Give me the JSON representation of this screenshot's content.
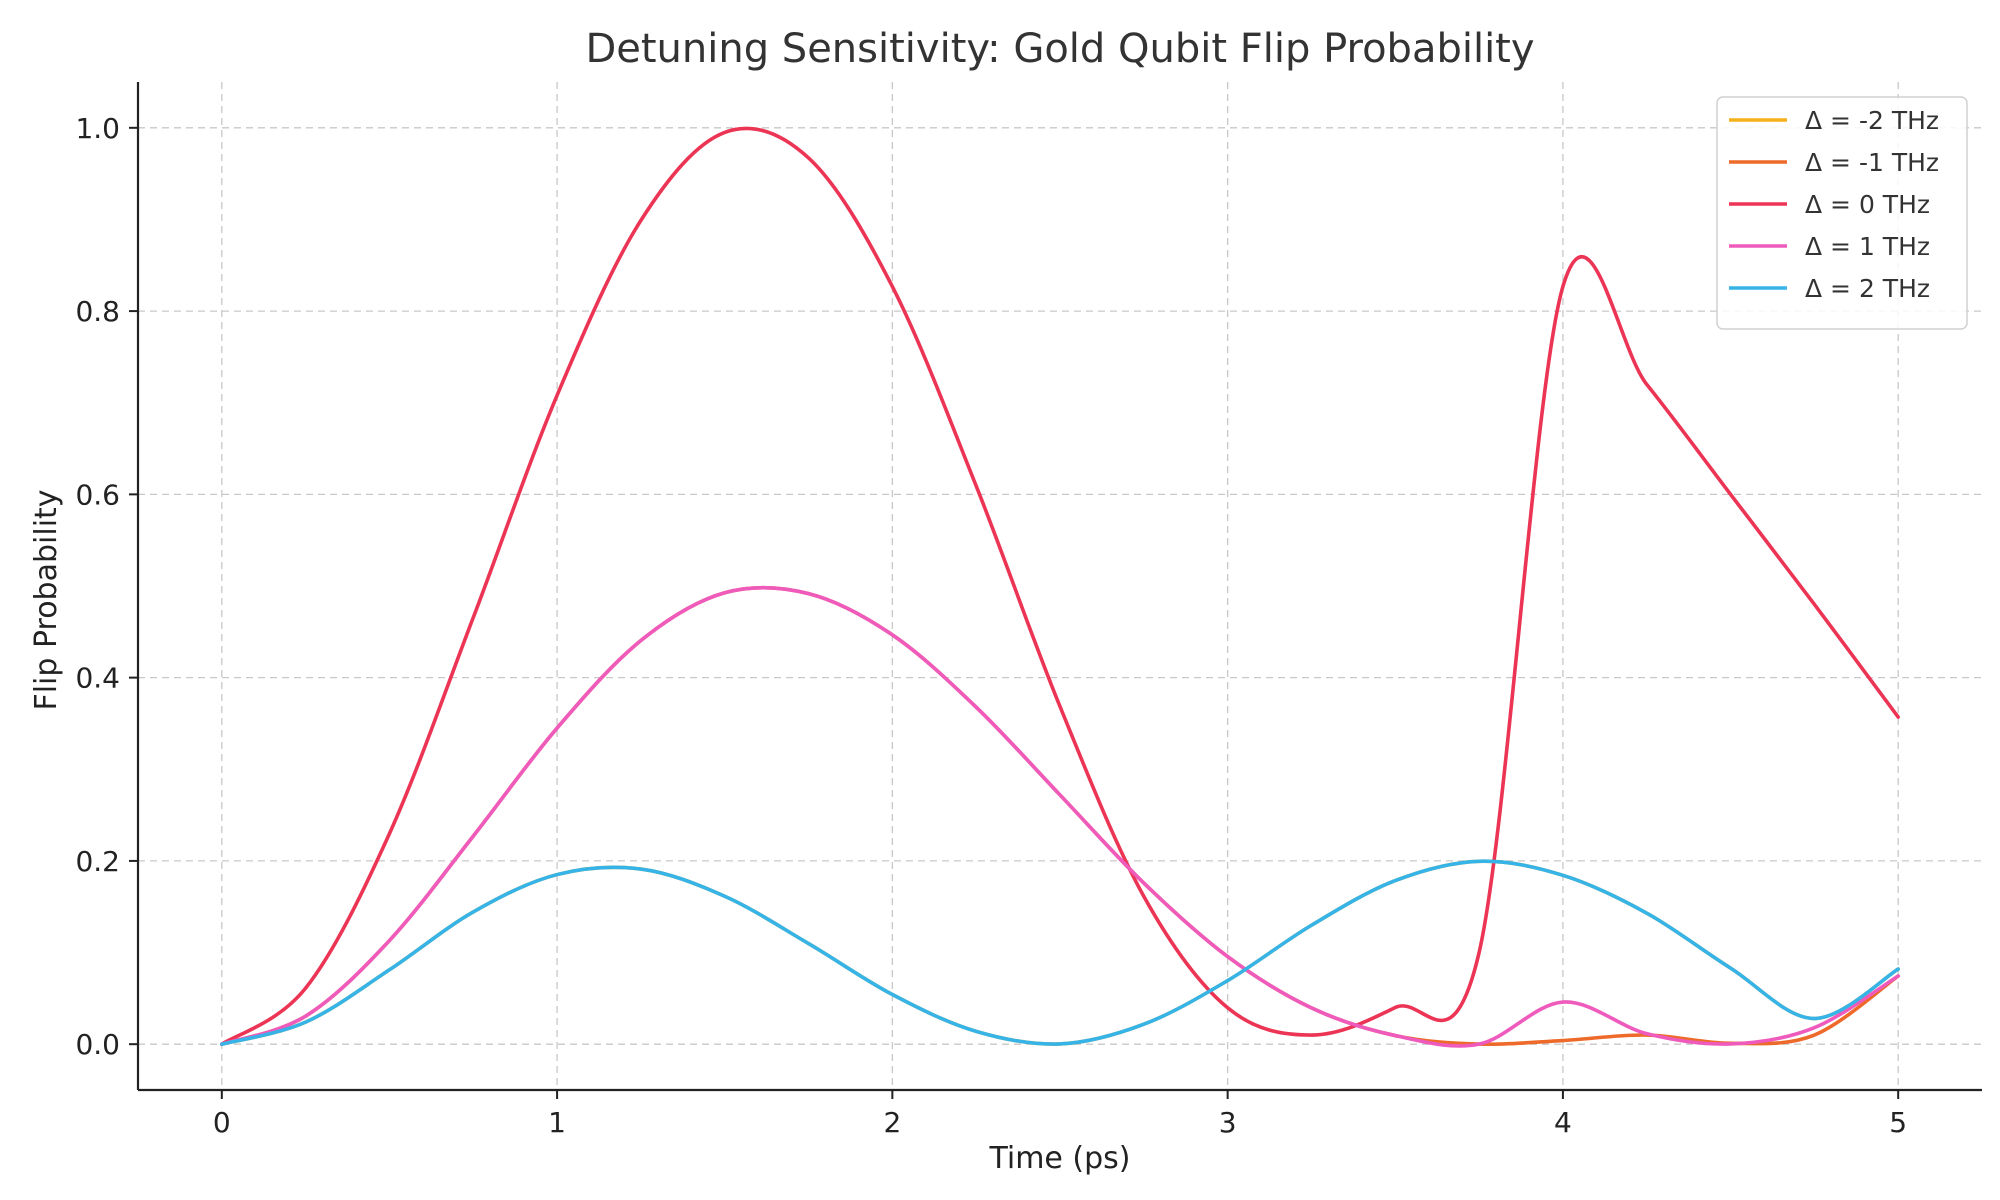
{
  "chart_data": {
    "type": "line",
    "title": "Detuning Sensitivity: Gold Qubit Flip Probability",
    "xlabel": "Time (ps)",
    "ylabel": "Flip Probability",
    "xlim": [
      -0.25,
      5.25
    ],
    "ylim": [
      -0.05,
      1.05
    ],
    "x_ticks": [
      0,
      1,
      2,
      3,
      4,
      5
    ],
    "x_tick_labels": [
      "0",
      "1",
      "2",
      "3",
      "4",
      "5"
    ],
    "y_ticks": [
      0.0,
      0.2,
      0.4,
      0.6,
      0.8,
      1.0
    ],
    "y_tick_labels": [
      "0.0",
      "0.2",
      "0.4",
      "0.6",
      "0.8",
      "1.0"
    ],
    "grid": true,
    "legend_position": "top-right",
    "x": [
      0,
      0.25,
      0.5,
      0.75,
      1,
      1.25,
      1.5,
      1.75,
      2,
      2.25,
      2.5,
      2.75,
      3,
      3.25,
      3.5,
      3.75,
      4,
      4.25,
      4.5,
      4.75,
      5
    ],
    "series": [
      {
        "name": "Δ = -2 THz",
        "color": "#f5b01a",
        "values": [
          0,
          0.0241,
          0.0812,
          0.1443,
          0.1851,
          0.1911,
          0.1614,
          0.1098,
          0.0542,
          0.014,
          0.0003,
          0.0218,
          0.0694,
          0.1298,
          0.1785,
          0.1996,
          0.1843,
          0.143,
          0.083,
          0.028,
          0.082
        ]
      },
      {
        "name": "Δ = -1 THz",
        "color": "#ee6a2a",
        "values": [
          0,
          0.0306,
          0.1131,
          0.2271,
          0.345,
          0.4405,
          0.4926,
          0.4917,
          0.4467,
          0.3678,
          0.272,
          0.1758,
          0.0956,
          0.0396,
          0.0094,
          0.0001,
          0.004,
          0.01,
          0.001,
          0.01,
          0.0744
        ]
      },
      {
        "name": "Δ = 0 THz",
        "color": "#ec3455",
        "values": [
          0,
          0.0612,
          0.2298,
          0.4656,
          0.7081,
          0.899,
          0.995,
          0.9671,
          0.8268,
          0.6092,
          0.3685,
          0.1613,
          0.0397,
          0.01,
          0.04,
          0.1,
          0.8268,
          0.72,
          0.6,
          0.48,
          0.357
        ]
      },
      {
        "name": "Δ = 1 THz",
        "color": "#ef5bbc",
        "values": [
          0,
          0.0306,
          0.1131,
          0.2271,
          0.345,
          0.4405,
          0.4926,
          0.4917,
          0.4467,
          0.3678,
          0.272,
          0.1758,
          0.0956,
          0.0396,
          0.0094,
          0.0001,
          0.046,
          0.0115,
          0.0003,
          0.018,
          0.0744
        ]
      },
      {
        "name": "Δ = 2 THz",
        "color": "#36b4e8",
        "values": [
          0,
          0.0241,
          0.0812,
          0.1443,
          0.1851,
          0.1911,
          0.1614,
          0.1098,
          0.0542,
          0.014,
          0.0003,
          0.0218,
          0.0694,
          0.1298,
          0.1785,
          0.1996,
          0.1843,
          0.143,
          0.083,
          0.028,
          0.082
        ]
      }
    ]
  }
}
